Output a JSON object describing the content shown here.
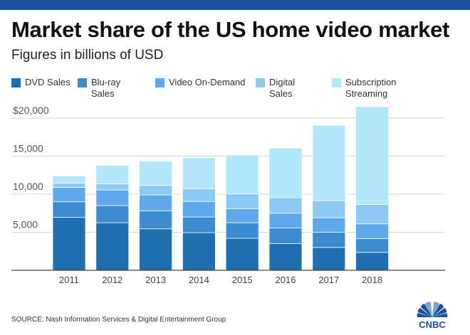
{
  "title": "Market share of the US home video market",
  "subtitle": "Figures in billions of USD",
  "source": "SOURCE: Nash Information Services & Digital Entertainment Group",
  "brand": "CNBC",
  "legend": [
    {
      "label": "DVD Sales",
      "color": "#1f6fae"
    },
    {
      "label": "Blu-ray Sales",
      "color": "#3a8bd0"
    },
    {
      "label": "Video On-Demand",
      "color": "#5fa8ea"
    },
    {
      "label": "Digital Sales",
      "color": "#8ccaf4"
    },
    {
      "label": "Subscription Streaming",
      "color": "#b3e7fb"
    }
  ],
  "chart_data": {
    "type": "bar",
    "stacked": true,
    "categories": [
      "2011",
      "2012",
      "2013",
      "2014",
      "2015",
      "2016",
      "2017",
      "2018"
    ],
    "series": [
      {
        "name": "DVD Sales",
        "color": "#1f6fae",
        "values": [
          6950,
          6250,
          5450,
          4950,
          4200,
          3500,
          3000,
          2350
        ]
      },
      {
        "name": "Blu-ray Sales",
        "color": "#3a8bd0",
        "values": [
          2050,
          2250,
          2350,
          2050,
          2050,
          2050,
          2000,
          1800
        ]
      },
      {
        "name": "Video On-Demand",
        "color": "#5fa8ea",
        "values": [
          1900,
          2050,
          2100,
          2050,
          1850,
          1950,
          1900,
          1950
        ]
      },
      {
        "name": "Digital Sales",
        "color": "#8ccaf4",
        "values": [
          550,
          800,
          1250,
          1650,
          1950,
          2050,
          2250,
          2550
        ]
      },
      {
        "name": "Subscription Streaming",
        "color": "#b3e7fb",
        "values": [
          950,
          2450,
          3200,
          4100,
          5100,
          6500,
          9900,
          12850
        ]
      }
    ],
    "yticks": [
      5000,
      10000,
      15000,
      20000
    ],
    "ytick_labels": [
      "5,000",
      "10,000",
      "15,000",
      "$20,000"
    ],
    "ylim": [
      0,
      21500
    ],
    "grid": true,
    "legend_position": "top"
  }
}
